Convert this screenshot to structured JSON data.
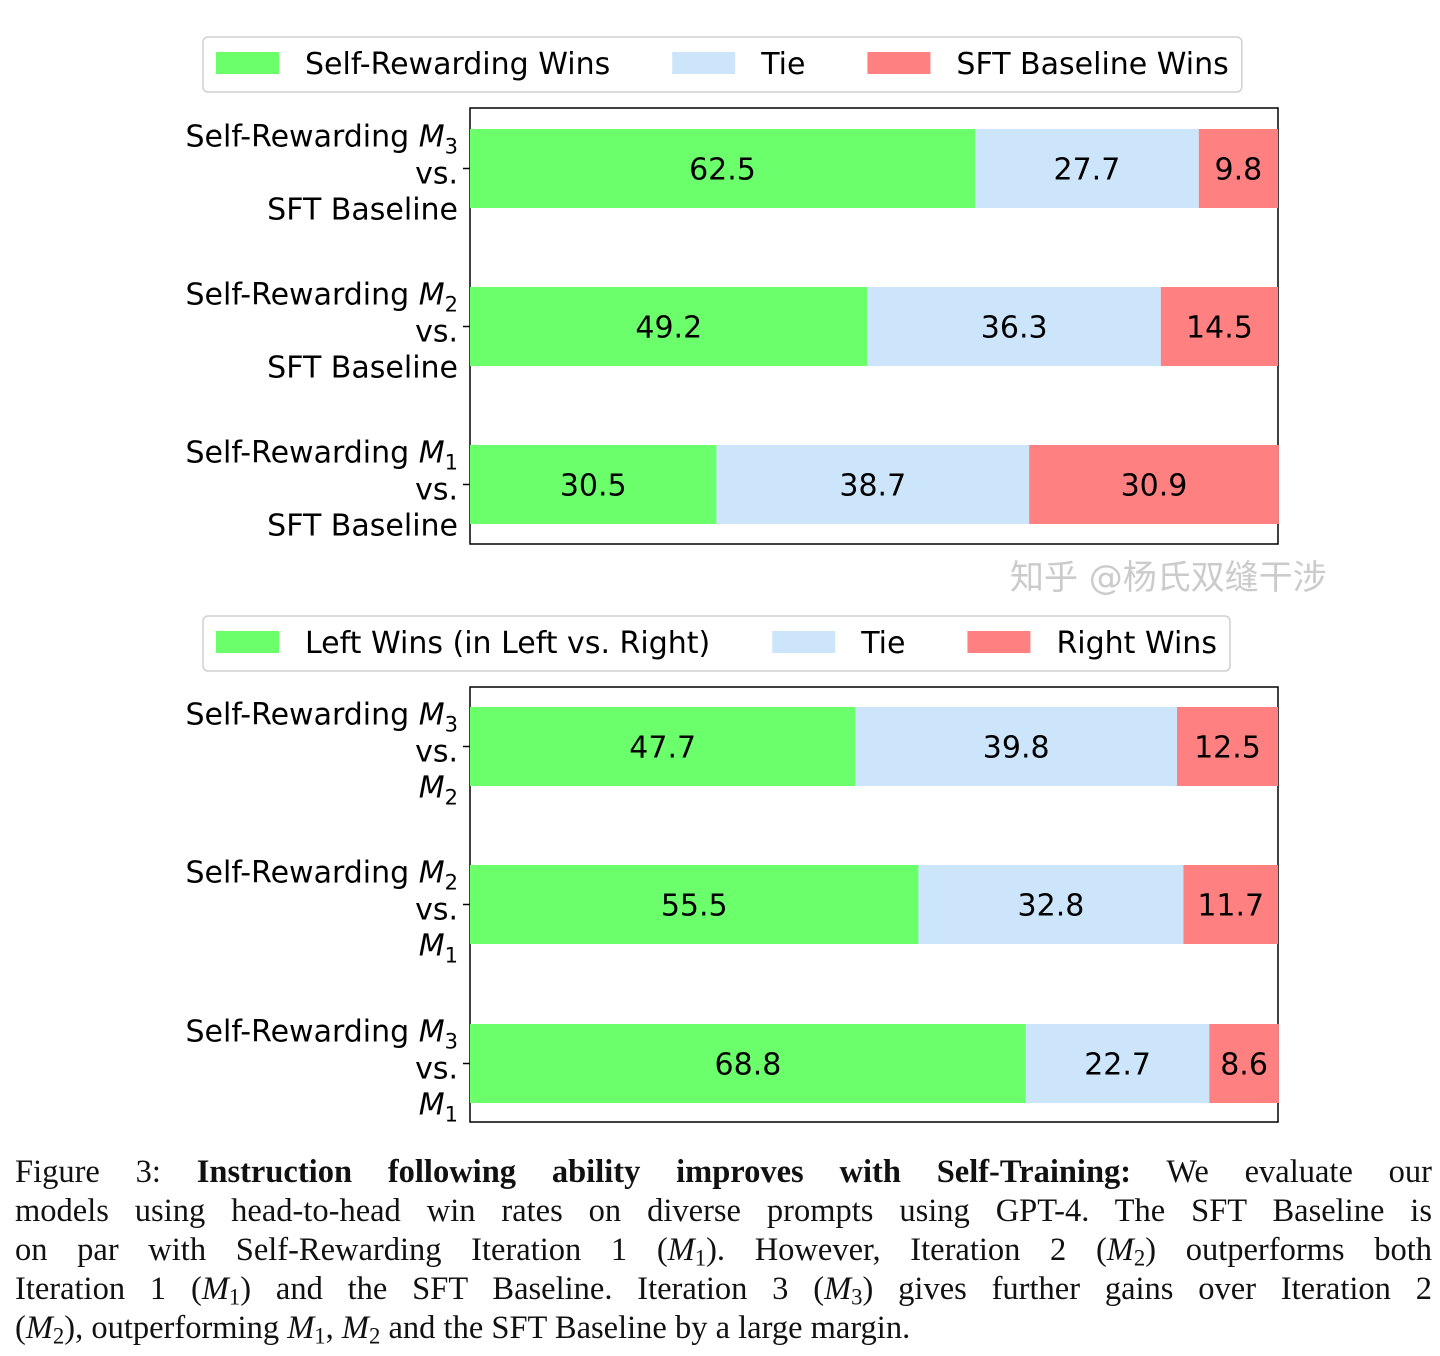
{
  "colors": {
    "win": "#6bff6b",
    "tie": "#cce5fb",
    "loss": "#ff8080",
    "axis": "#000000"
  },
  "chart_data": [
    {
      "type": "bar",
      "orientation": "horizontal-stacked",
      "xlim": [
        0,
        100
      ],
      "legend_position": "top",
      "legend": [
        "Self-Rewarding Wins",
        "Tie",
        "SFT Baseline Wins"
      ],
      "categories": [
        {
          "line1": "Self-Rewarding ",
          "model": {
            "var": "M",
            "sub": "3"
          },
          "line2": "vs.",
          "line3": "SFT Baseline"
        },
        {
          "line1": "Self-Rewarding ",
          "model": {
            "var": "M",
            "sub": "2"
          },
          "line2": "vs.",
          "line3": "SFT Baseline"
        },
        {
          "line1": "Self-Rewarding ",
          "model": {
            "var": "M",
            "sub": "1"
          },
          "line2": "vs.",
          "line3": "SFT Baseline"
        }
      ],
      "series": [
        {
          "name": "Self-Rewarding Wins",
          "values": [
            62.5,
            49.2,
            30.5
          ]
        },
        {
          "name": "Tie",
          "values": [
            27.7,
            36.3,
            38.7
          ]
        },
        {
          "name": "SFT Baseline Wins",
          "values": [
            9.8,
            14.5,
            30.9
          ]
        }
      ]
    },
    {
      "type": "bar",
      "orientation": "horizontal-stacked",
      "xlim": [
        0,
        100
      ],
      "legend_position": "top",
      "legend": [
        "Left Wins (in Left vs. Right)",
        "Tie",
        "Right Wins"
      ],
      "categories": [
        {
          "line1": "Self-Rewarding ",
          "model": {
            "var": "M",
            "sub": "3"
          },
          "line2": "vs.",
          "line3_model": {
            "var": "M",
            "sub": "2"
          }
        },
        {
          "line1": "Self-Rewarding ",
          "model": {
            "var": "M",
            "sub": "2"
          },
          "line2": "vs.",
          "line3_model": {
            "var": "M",
            "sub": "1"
          }
        },
        {
          "line1": "Self-Rewarding ",
          "model": {
            "var": "M",
            "sub": "3"
          },
          "line2": "vs.",
          "line3_model": {
            "var": "M",
            "sub": "1"
          }
        }
      ],
      "series": [
        {
          "name": "Left Wins (in Left vs. Right)",
          "values": [
            47.7,
            55.5,
            68.8
          ]
        },
        {
          "name": "Tie",
          "values": [
            39.8,
            32.8,
            22.7
          ]
        },
        {
          "name": "Right Wins",
          "values": [
            12.5,
            11.7,
            8.6
          ]
        }
      ]
    }
  ],
  "caption": {
    "lines": [
      [
        {
          "s": "t",
          "text": "Figure 3:  "
        },
        {
          "s": "b",
          "text": "Instruction following ability improves with Self-Training:"
        },
        {
          "s": "t",
          "text": " We evaluate our"
        }
      ],
      [
        {
          "s": "t",
          "text": "models using head-to-head win rates on diverse prompts using GPT-4. The SFT Baseline is"
        }
      ],
      [
        {
          "s": "t",
          "text": "on par with Self-Rewarding Iteration 1 ("
        },
        {
          "s": "m",
          "text": "M",
          "sub": "1"
        },
        {
          "s": "t",
          "text": "). However, Iteration 2 ("
        },
        {
          "s": "m",
          "text": "M",
          "sub": "2"
        },
        {
          "s": "t",
          "text": ") outperforms both"
        }
      ],
      [
        {
          "s": "t",
          "text": "Iteration 1 ("
        },
        {
          "s": "m",
          "text": "M",
          "sub": "1"
        },
        {
          "s": "t",
          "text": ") and the SFT Baseline. Iteration 3 ("
        },
        {
          "s": "m",
          "text": "M",
          "sub": "3"
        },
        {
          "s": "t",
          "text": ") gives further gains over Iteration 2"
        }
      ],
      [
        {
          "s": "t",
          "text": "("
        },
        {
          "s": "m",
          "text": "M",
          "sub": "2"
        },
        {
          "s": "t",
          "text": "), outperforming "
        },
        {
          "s": "m",
          "text": "M",
          "sub": "1"
        },
        {
          "s": "t",
          "text": ", "
        },
        {
          "s": "m",
          "text": "M",
          "sub": "2"
        },
        {
          "s": "t",
          "text": " and the SFT Baseline by a large margin."
        }
      ]
    ]
  },
  "watermark": "知乎 @杨氏双缝干涉"
}
